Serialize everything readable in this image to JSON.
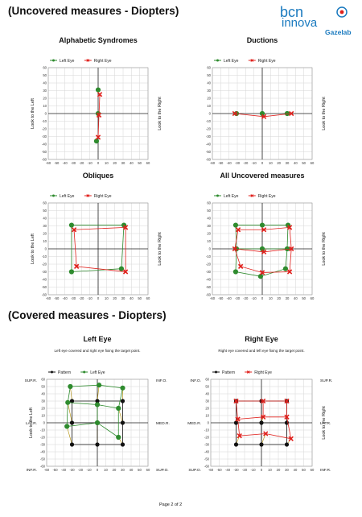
{
  "header": {
    "title": "(Uncovered measures - Diopters)",
    "brand_top": "bcn",
    "brand_bottom": "innova",
    "brand_sub": "Gazelab"
  },
  "section2": {
    "title": "(Covered measures - Diopters)"
  },
  "footer": {
    "page_text": "Page 2 of 2"
  },
  "colors": {
    "left_eye": "#2e8b2e",
    "right_eye": "#e0201c",
    "pattern": "#111111",
    "connector": "#b08c00",
    "brand": "#1a7abf"
  },
  "legend": {
    "left_eye": "Left Eye",
    "right_eye": "Right Eye",
    "pattern": "Pattern"
  },
  "chart_data": [
    {
      "id": "alphabetic",
      "type": "scatter",
      "title": "Alphabetic Syndromes",
      "ylabel_left": "Look to the Left",
      "ylabel_right": "Look to the Right",
      "xlim": [
        -60,
        60
      ],
      "ylim": [
        -60,
        60
      ],
      "xticks": [
        -60,
        -50,
        -40,
        -30,
        -20,
        -10,
        0,
        10,
        20,
        30,
        40,
        50,
        60
      ],
      "yticks": [
        60,
        50,
        40,
        30,
        20,
        10,
        0,
        -10,
        -20,
        -30,
        -40,
        -50,
        -60
      ],
      "series": [
        {
          "name": "Left Eye",
          "color": "#2e8b2e",
          "marker": "circle",
          "points": [
            [
              0,
              31
            ],
            [
              0,
              0
            ],
            [
              -2,
              -36
            ]
          ],
          "lines": []
        },
        {
          "name": "Right Eye",
          "color": "#e0201c",
          "marker": "x",
          "points": [
            [
              2,
              25
            ],
            [
              1,
              -2
            ],
            [
              0,
              -31
            ]
          ],
          "lines": [
            [
              [
                2,
                25
              ],
              [
                1,
                -2
              ],
              [
                0,
                -31
              ]
            ]
          ]
        }
      ]
    },
    {
      "id": "ductions",
      "type": "scatter",
      "title": "Ductions",
      "ylabel_left": "",
      "ylabel_right": "Look to the Right",
      "xlim": [
        -60,
        60
      ],
      "ylim": [
        -60,
        60
      ],
      "xticks": [
        -60,
        -50,
        -40,
        -30,
        -20,
        -10,
        0,
        10,
        20,
        30,
        40,
        50,
        60
      ],
      "yticks": [
        60,
        50,
        40,
        30,
        20,
        10,
        0,
        -10,
        -20,
        -30,
        -40,
        -50,
        -60
      ],
      "series": [
        {
          "name": "Left Eye",
          "color": "#2e8b2e",
          "marker": "circle",
          "points": [
            [
              -31,
              0
            ],
            [
              0,
              0
            ],
            [
              30,
              0
            ]
          ],
          "lines": []
        },
        {
          "name": "Right Eye",
          "color": "#e0201c",
          "marker": "x",
          "points": [
            [
              -33,
              0
            ],
            [
              2,
              -4
            ],
            [
              35,
              0
            ]
          ],
          "lines": [
            [
              [
                -33,
                0
              ],
              [
                2,
                -4
              ],
              [
                35,
                0
              ]
            ]
          ]
        }
      ]
    },
    {
      "id": "obliques",
      "type": "scatter",
      "title": "Obliques",
      "ylabel_left": "Look to the Left",
      "ylabel_right": "Look to the Right",
      "xlim": [
        -60,
        60
      ],
      "ylim": [
        -60,
        60
      ],
      "xticks": [
        -60,
        -50,
        -40,
        -30,
        -20,
        -10,
        0,
        10,
        20,
        30,
        40,
        50,
        60
      ],
      "yticks": [
        60,
        50,
        40,
        30,
        20,
        10,
        0,
        -10,
        -20,
        -30,
        -40,
        -50,
        -60
      ],
      "series": [
        {
          "name": "Left Eye",
          "color": "#2e8b2e",
          "marker": "circle",
          "points": [
            [
              -32,
              31
            ],
            [
              31,
              31
            ],
            [
              28,
              -26
            ],
            [
              -32,
              -30
            ]
          ],
          "lines": [
            [
              [
                -32,
                31
              ],
              [
                31,
                31
              ],
              [
                28,
                -26
              ],
              [
                -32,
                -30
              ],
              [
                -32,
                31
              ]
            ]
          ]
        },
        {
          "name": "Right Eye",
          "color": "#e0201c",
          "marker": "x",
          "points": [
            [
              -29,
              25
            ],
            [
              33,
              28
            ],
            [
              33,
              -30
            ],
            [
              -26,
              -23
            ]
          ],
          "lines": [
            [
              [
                -29,
                25
              ],
              [
                33,
                28
              ],
              [
                33,
                -30
              ],
              [
                -26,
                -23
              ],
              [
                -29,
                25
              ]
            ]
          ]
        }
      ]
    },
    {
      "id": "all_uncovered",
      "type": "scatter",
      "title": "All Uncovered measures",
      "ylabel_left": "",
      "ylabel_right": "Look to the Right",
      "xlim": [
        -60,
        60
      ],
      "ylim": [
        -60,
        60
      ],
      "xticks": [
        -60,
        -50,
        -40,
        -30,
        -20,
        -10,
        0,
        10,
        20,
        30,
        40,
        50,
        60
      ],
      "yticks": [
        60,
        50,
        40,
        30,
        20,
        10,
        0,
        -10,
        -20,
        -30,
        -40,
        -50,
        -60
      ],
      "series": [
        {
          "name": "Left Eye",
          "color": "#2e8b2e",
          "marker": "circle",
          "points": [
            [
              -32,
              31
            ],
            [
              0,
              31
            ],
            [
              31,
              31
            ],
            [
              -31,
              0
            ],
            [
              0,
              0
            ],
            [
              30,
              0
            ],
            [
              28,
              -26
            ],
            [
              -32,
              -30
            ],
            [
              -2,
              -36
            ]
          ],
          "lines": [
            [
              [
                -32,
                31
              ],
              [
                0,
                31
              ],
              [
                31,
                31
              ],
              [
                30,
                0
              ],
              [
                28,
                -26
              ],
              [
                -2,
                -36
              ],
              [
                -32,
                -30
              ],
              [
                -31,
                0
              ],
              [
                -32,
                31
              ]
            ],
            [
              [
                -31,
                0
              ],
              [
                0,
                0
              ],
              [
                30,
                0
              ]
            ]
          ]
        },
        {
          "name": "Right Eye",
          "color": "#e0201c",
          "marker": "x",
          "points": [
            [
              -29,
              25
            ],
            [
              2,
              25
            ],
            [
              33,
              28
            ],
            [
              -33,
              0
            ],
            [
              2,
              -4
            ],
            [
              35,
              0
            ],
            [
              33,
              -30
            ],
            [
              0,
              -31
            ],
            [
              -26,
              -23
            ]
          ],
          "lines": [
            [
              [
                -29,
                25
              ],
              [
                2,
                25
              ],
              [
                33,
                28
              ],
              [
                35,
                0
              ],
              [
                33,
                -30
              ],
              [
                0,
                -31
              ],
              [
                -26,
                -23
              ],
              [
                -33,
                0
              ],
              [
                -29,
                25
              ]
            ],
            [
              [
                -33,
                0
              ],
              [
                2,
                -4
              ],
              [
                35,
                0
              ]
            ]
          ]
        }
      ]
    },
    {
      "id": "covered_left",
      "type": "scatter",
      "title": "Left Eye",
      "subtitle": "Left eye covered and right eye fixing the target point.",
      "ylabel_left": "Look to the Left",
      "ylabel_right": "",
      "corner_labels": {
        "top_left": "SUP.R.",
        "top_right": "INF.O.",
        "mid_left": "LAT.R.",
        "mid_right": "MED.R.",
        "bottom_left": "INF.R.",
        "bottom_right": "SUP.O."
      },
      "xlim": [
        -60,
        60
      ],
      "ylim": [
        -60,
        60
      ],
      "xticks": [
        -60,
        -50,
        -40,
        -30,
        -20,
        -10,
        0,
        10,
        20,
        30,
        40,
        50,
        60
      ],
      "yticks": [
        60,
        50,
        40,
        30,
        20,
        10,
        0,
        -10,
        -20,
        -30,
        -40,
        -50,
        -60
      ],
      "series": [
        {
          "name": "Pattern",
          "color": "#111111",
          "marker": "dot",
          "points": [
            [
              -30,
              30
            ],
            [
              0,
              30
            ],
            [
              30,
              30
            ],
            [
              -30,
              0
            ],
            [
              0,
              0
            ],
            [
              30,
              0
            ],
            [
              -30,
              -30
            ],
            [
              0,
              -30
            ],
            [
              30,
              -30
            ]
          ],
          "lines": [
            [
              [
                -30,
                30
              ],
              [
                0,
                30
              ],
              [
                30,
                30
              ],
              [
                30,
                0
              ],
              [
                30,
                -30
              ],
              [
                0,
                -30
              ],
              [
                -30,
                -30
              ],
              [
                -30,
                0
              ],
              [
                -30,
                30
              ]
            ],
            [
              [
                -30,
                0
              ],
              [
                0,
                0
              ],
              [
                30,
                0
              ]
            ],
            [
              [
                0,
                30
              ],
              [
                0,
                0
              ],
              [
                0,
                -30
              ]
            ]
          ]
        },
        {
          "name": "Left Eye",
          "color": "#2e8b2e",
          "marker": "circle",
          "points": [
            [
              -32,
              50
            ],
            [
              2,
              52
            ],
            [
              30,
              48
            ],
            [
              -35,
              28
            ],
            [
              0,
              25
            ],
            [
              25,
              20
            ],
            [
              -36,
              -5
            ],
            [
              0,
              0
            ],
            [
              25,
              -20
            ]
          ],
          "lines": [
            [
              [
                -32,
                50
              ],
              [
                2,
                52
              ],
              [
                30,
                48
              ],
              [
                25,
                20
              ],
              [
                25,
                -20
              ]
            ],
            [
              [
                -32,
                50
              ],
              [
                -35,
                28
              ],
              [
                -36,
                -5
              ],
              [
                0,
                0
              ],
              [
                25,
                -20
              ]
            ],
            [
              [
                -35,
                28
              ],
              [
                0,
                25
              ],
              [
                25,
                20
              ]
            ],
            [
              [
                0,
                25
              ],
              [
                0,
                0
              ]
            ]
          ]
        }
      ]
    },
    {
      "id": "covered_right",
      "type": "scatter",
      "title": "Right Eye",
      "subtitle": "Right eye covered and left eye fixing the target point.",
      "ylabel_left": "",
      "ylabel_right": "Look to the Right",
      "corner_labels": {
        "top_left": "INF.O.",
        "top_right": "SUP.R.",
        "mid_left": "MED.R.",
        "mid_right": "LATR.",
        "bottom_left": "SUP.O.",
        "bottom_right": "INF.R."
      },
      "xlim": [
        -60,
        60
      ],
      "ylim": [
        -60,
        60
      ],
      "xticks": [
        -60,
        -50,
        -40,
        -30,
        -20,
        -10,
        0,
        10,
        20,
        30,
        40,
        50,
        60
      ],
      "yticks": [
        60,
        50,
        40,
        30,
        20,
        10,
        0,
        -10,
        -20,
        -30,
        -40,
        -50,
        -60
      ],
      "series": [
        {
          "name": "Pattern",
          "color": "#111111",
          "marker": "dot",
          "points": [
            [
              -30,
              30
            ],
            [
              0,
              30
            ],
            [
              30,
              30
            ],
            [
              -30,
              0
            ],
            [
              0,
              0
            ],
            [
              30,
              0
            ],
            [
              -30,
              -30
            ],
            [
              0,
              -30
            ],
            [
              30,
              -30
            ]
          ],
          "lines": [
            [
              [
                -30,
                30
              ],
              [
                0,
                30
              ],
              [
                30,
                30
              ],
              [
                30,
                0
              ],
              [
                30,
                -30
              ],
              [
                0,
                -30
              ],
              [
                -30,
                -30
              ],
              [
                -30,
                0
              ],
              [
                -30,
                30
              ]
            ],
            [
              [
                -30,
                0
              ],
              [
                0,
                0
              ],
              [
                30,
                0
              ]
            ],
            [
              [
                0,
                30
              ],
              [
                0,
                0
              ],
              [
                0,
                -30
              ]
            ]
          ]
        },
        {
          "name": "Right Eye",
          "color": "#e0201c",
          "marker": "x",
          "points": [
            [
              -30,
              30
            ],
            [
              2,
              30
            ],
            [
              30,
              30
            ],
            [
              -28,
              5
            ],
            [
              2,
              8
            ],
            [
              30,
              8
            ],
            [
              -26,
              -18
            ],
            [
              5,
              -15
            ],
            [
              35,
              -22
            ]
          ],
          "lines": [
            [
              [
                -30,
                30
              ],
              [
                2,
                30
              ],
              [
                30,
                30
              ],
              [
                30,
                8
              ],
              [
                35,
                -22
              ]
            ],
            [
              [
                -30,
                30
              ],
              [
                -28,
                5
              ],
              [
                -26,
                -18
              ],
              [
                5,
                -15
              ],
              [
                35,
                -22
              ]
            ],
            [
              [
                -28,
                5
              ],
              [
                2,
                8
              ],
              [
                30,
                8
              ]
            ],
            [
              [
                2,
                30
              ],
              [
                2,
                8
              ]
            ]
          ]
        }
      ]
    }
  ]
}
